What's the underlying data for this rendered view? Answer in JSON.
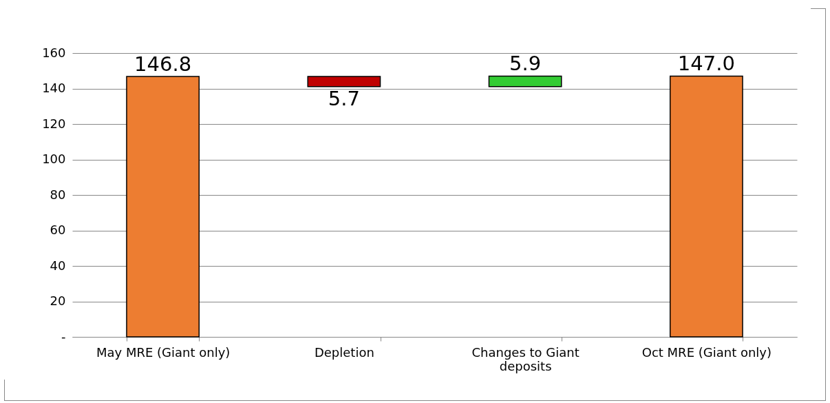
{
  "chart_data": {
    "type": "bar",
    "categories": [
      "May MRE (Giant only)",
      "Depletion",
      "Changes to Giant deposits",
      "Oct MRE (Giant only)"
    ],
    "values": [
      146.8,
      -5.7,
      5.9,
      147.0
    ],
    "base": [
      0,
      146.8,
      141.1,
      0
    ],
    "value_labels": [
      "146.8",
      "5.7",
      "5.9",
      "147.0"
    ],
    "colors": [
      "#ed7d31",
      "#c00000",
      "#33cc33",
      "#ed7d31"
    ],
    "ylim": [
      0,
      160
    ],
    "yticks": [
      {
        "value": 0,
        "label": "-"
      },
      20,
      40,
      60,
      80,
      100,
      120,
      140,
      160
    ],
    "grid": "y"
  }
}
